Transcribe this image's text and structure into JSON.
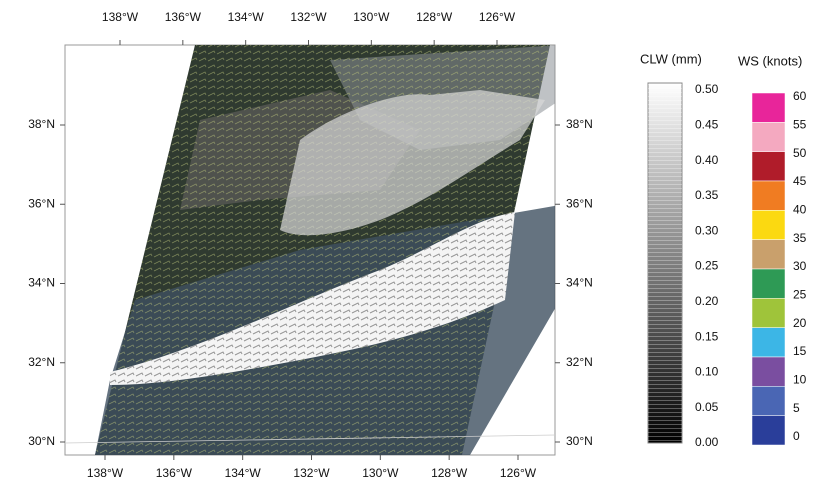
{
  "map": {
    "top_lon_labels": [
      "138°W",
      "136°W",
      "134°W",
      "132°W",
      "130°W",
      "128°W",
      "126°W"
    ],
    "bottom_lon_labels": [
      "138°W",
      "136°W",
      "134°W",
      "132°W",
      "130°W",
      "128°W",
      "126°W"
    ],
    "left_lat_labels": [
      "38°N",
      "36°N",
      "34°N",
      "32°N",
      "30°N"
    ],
    "right_lat_labels": [
      "38°N",
      "36°N",
      "34°N",
      "32°N",
      "30°N"
    ]
  },
  "clw_colorbar": {
    "title": "CLW (mm)",
    "labels": [
      "0.50",
      "0.45",
      "0.40",
      "0.35",
      "0.30",
      "0.25",
      "0.20",
      "0.15",
      "0.10",
      "0.05",
      "0.00"
    ]
  },
  "ws_colorbar": {
    "title": "WS (knots)",
    "labels": [
      "60",
      "55",
      "50",
      "45",
      "40",
      "35",
      "30",
      "25",
      "20",
      "15",
      "10",
      "5",
      "0"
    ],
    "colors": [
      "#e8259a",
      "#f4a9c0",
      "#b01c2a",
      "#f07c22",
      "#fbd911",
      "#c9a06c",
      "#2e9a55",
      "#9fc43a",
      "#3cb6e6",
      "#7a4ea0",
      "#4a66b4",
      "#2a3e9a"
    ]
  }
}
